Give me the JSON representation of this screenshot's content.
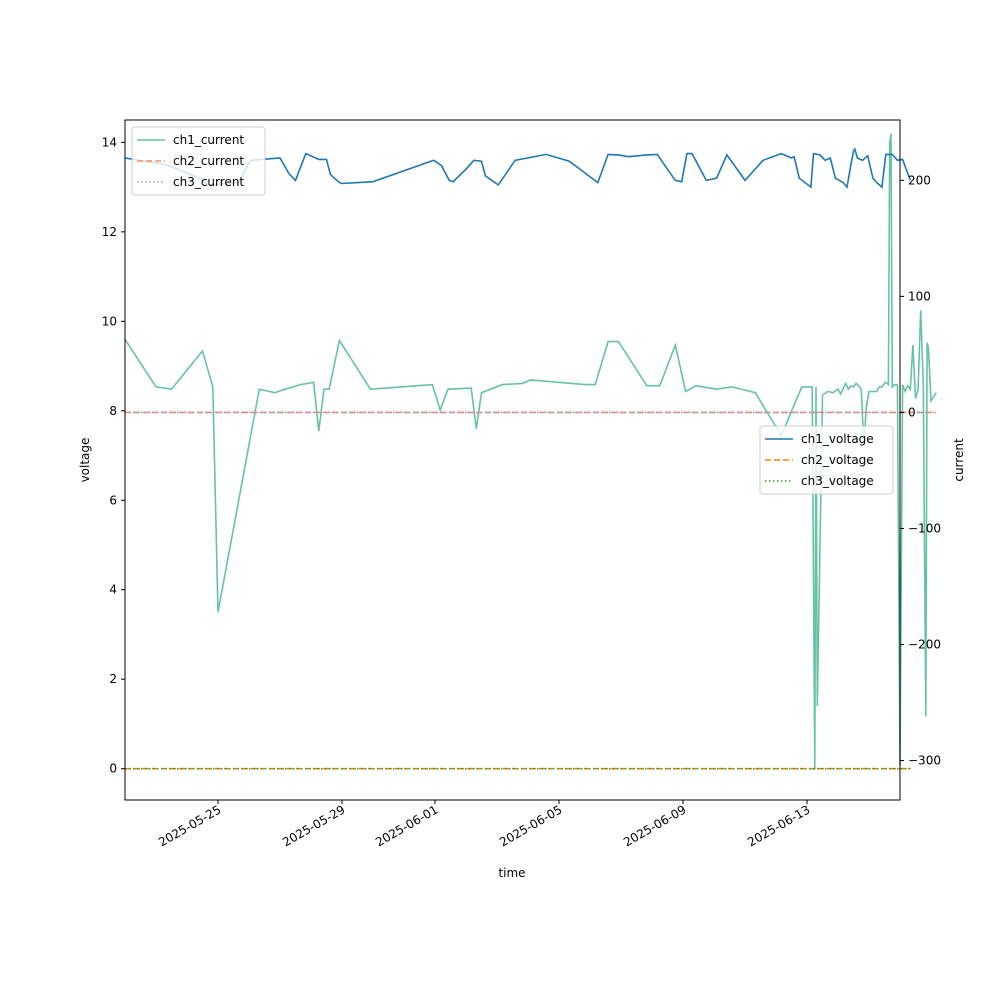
{
  "chart_data": {
    "type": "line",
    "xlabel": "time",
    "ylabel_left": "voltage",
    "ylabel_right": "current",
    "x_range": [
      "2025-05-22T00:00:00",
      "2025-06-16T00:00:00"
    ],
    "y_left_range": [
      -0.7,
      14.5
    ],
    "y_right_range": [
      -334,
      252
    ],
    "x_ticks": [
      "2025-05-25",
      "2025-05-29",
      "2025-06-01",
      "2025-06-05",
      "2025-06-09",
      "2025-06-13"
    ],
    "y_left_ticks": [
      0,
      2,
      4,
      6,
      8,
      10,
      12,
      14
    ],
    "y_right_ticks": [
      -300,
      -200,
      -100,
      0,
      100,
      200
    ],
    "legend_left": {
      "placement": "upper-left",
      "entries": [
        "ch1_current",
        "ch2_current",
        "ch3_current"
      ]
    },
    "legend_right": {
      "placement": "center-right",
      "entries": [
        "ch1_voltage",
        "ch2_voltage",
        "ch3_voltage"
      ]
    },
    "voltage_series": [
      {
        "name": "ch1_voltage",
        "color": "#1f77b4",
        "style": "solid",
        "points": [
          [
            "2025-05-22T00:00",
            13.65
          ],
          [
            "2025-05-23T08:00",
            13.5
          ],
          [
            "2025-05-24T10:00",
            13.2
          ],
          [
            "2025-05-24T16:00",
            13.05
          ],
          [
            "2025-05-25T16:00",
            13.1
          ],
          [
            "2025-05-26T01:00",
            13.6
          ],
          [
            "2025-05-27T00:00",
            13.65
          ],
          [
            "2025-05-27T07:00",
            13.3
          ],
          [
            "2025-05-27T12:00",
            13.15
          ],
          [
            "2025-05-27T20:00",
            13.75
          ],
          [
            "2025-05-28T06:00",
            13.62
          ],
          [
            "2025-05-28T12:00",
            13.62
          ],
          [
            "2025-05-28T15:00",
            13.28
          ],
          [
            "2025-05-28T22:00",
            13.1
          ],
          [
            "2025-05-29T00:00",
            13.08
          ],
          [
            "2025-05-30T00:00",
            13.12
          ],
          [
            "2025-05-31T23:00",
            13.6
          ],
          [
            "2025-06-01T05:00",
            13.48
          ],
          [
            "2025-06-01T11:00",
            13.15
          ],
          [
            "2025-06-01T14:00",
            13.12
          ],
          [
            "2025-06-02T00:00",
            13.4
          ],
          [
            "2025-06-02T06:00",
            13.6
          ],
          [
            "2025-06-02T12:00",
            13.58
          ],
          [
            "2025-06-02T15:00",
            13.25
          ],
          [
            "2025-06-03T01:00",
            13.05
          ],
          [
            "2025-06-03T14:00",
            13.6
          ],
          [
            "2025-06-04T14:00",
            13.73
          ],
          [
            "2025-06-05T08:00",
            13.58
          ],
          [
            "2025-06-06T06:00",
            13.1
          ],
          [
            "2025-06-06T14:00",
            13.73
          ],
          [
            "2025-06-06T22:00",
            13.72
          ],
          [
            "2025-06-07T06:00",
            13.68
          ],
          [
            "2025-06-07T20:00",
            13.72
          ],
          [
            "2025-06-08T04:00",
            13.73
          ],
          [
            "2025-06-08T18:00",
            13.15
          ],
          [
            "2025-06-08T23:00",
            13.12
          ],
          [
            "2025-06-09T03:00",
            13.75
          ],
          [
            "2025-06-09T07:00",
            13.75
          ],
          [
            "2025-06-09T18:00",
            13.15
          ],
          [
            "2025-06-10T02:00",
            13.2
          ],
          [
            "2025-06-10T10:00",
            13.72
          ],
          [
            "2025-06-11T00:00",
            13.15
          ],
          [
            "2025-06-11T14:00",
            13.6
          ],
          [
            "2025-06-12T04:00",
            13.75
          ],
          [
            "2025-06-12T12:00",
            13.65
          ],
          [
            "2025-06-12T14:00",
            13.68
          ],
          [
            "2025-06-12T18:00",
            13.2
          ],
          [
            "2025-06-13T03:00",
            13.0
          ],
          [
            "2025-06-13T05:00",
            13.75
          ],
          [
            "2025-06-13T10:00",
            13.72
          ],
          [
            "2025-06-13T14:00",
            13.6
          ],
          [
            "2025-06-13T18:00",
            13.65
          ],
          [
            "2025-06-13T22:00",
            13.2
          ],
          [
            "2025-06-14T04:00",
            13.1
          ],
          [
            "2025-06-14T07:00",
            13.0
          ],
          [
            "2025-06-14T10:00",
            13.5
          ],
          [
            "2025-06-14T12:00",
            13.8
          ],
          [
            "2025-06-14T13:00",
            13.85
          ],
          [
            "2025-06-14T15:00",
            13.65
          ],
          [
            "2025-06-14T19:00",
            13.6
          ],
          [
            "2025-06-14T23:00",
            13.7
          ],
          [
            "2025-06-15T03:00",
            13.2
          ],
          [
            "2025-06-15T06:00",
            13.1
          ],
          [
            "2025-06-15T10:00",
            13.0
          ],
          [
            "2025-06-15T13:00",
            13.73
          ],
          [
            "2025-06-15T18:00",
            13.73
          ],
          [
            "2025-06-15T22:00",
            13.6
          ],
          [
            "2025-06-16T02:00",
            13.62
          ],
          [
            "2025-06-16T08:00",
            13.15
          ]
        ]
      },
      {
        "name": "ch2_voltage",
        "color": "#ff7f0e",
        "style": "dashed",
        "points": [
          [
            "2025-05-22T00:00",
            0
          ],
          [
            "2025-06-16T08:00",
            0
          ]
        ]
      },
      {
        "name": "ch3_voltage",
        "color": "#2ca02c",
        "style": "dotted",
        "points": [
          [
            "2025-05-22T00:00",
            0
          ],
          [
            "2025-06-16T08:00",
            0
          ]
        ]
      }
    ],
    "current_series": [
      {
        "name": "ch1_current",
        "color": "#66c2a5",
        "style": "solid",
        "points": [
          [
            "2025-05-22T00:00",
            63
          ],
          [
            "2025-05-23T00:00",
            22
          ],
          [
            "2025-05-23T12:00",
            20
          ],
          [
            "2025-05-24T12:00",
            53
          ],
          [
            "2025-05-24T20:00",
            22
          ],
          [
            "2025-05-25T00:00",
            -172
          ],
          [
            "2025-05-26T08:00",
            20
          ],
          [
            "2025-05-26T20:00",
            17
          ],
          [
            "2025-05-27T04:00",
            20
          ],
          [
            "2025-05-27T16:00",
            24
          ],
          [
            "2025-05-28T02:00",
            26
          ],
          [
            "2025-05-28T06:00",
            -16
          ],
          [
            "2025-05-28T10:00",
            20
          ],
          [
            "2025-05-28T14:00",
            20
          ],
          [
            "2025-05-28T22:00",
            62
          ],
          [
            "2025-05-29T22:00",
            20
          ],
          [
            "2025-05-31T22:00",
            24
          ],
          [
            "2025-06-01T04:00",
            2
          ],
          [
            "2025-06-01T10:00",
            20
          ],
          [
            "2025-06-02T04:00",
            21
          ],
          [
            "2025-06-02T08:00",
            -14
          ],
          [
            "2025-06-02T12:00",
            17
          ],
          [
            "2025-06-03T04:00",
            24
          ],
          [
            "2025-06-03T20:00",
            25
          ],
          [
            "2025-06-04T02:00",
            28
          ],
          [
            "2025-06-05T20:00",
            24
          ],
          [
            "2025-06-06T04:00",
            24
          ],
          [
            "2025-06-06T14:00",
            61
          ],
          [
            "2025-06-06T22:00",
            61
          ],
          [
            "2025-06-07T20:00",
            23
          ],
          [
            "2025-06-08T06:00",
            23
          ],
          [
            "2025-06-08T18:00",
            58
          ],
          [
            "2025-06-09T02:00",
            18
          ],
          [
            "2025-06-09T10:00",
            23
          ],
          [
            "2025-06-10T02:00",
            20
          ],
          [
            "2025-06-10T14:00",
            22
          ],
          [
            "2025-06-11T08:00",
            17
          ],
          [
            "2025-06-12T04:00",
            -20
          ],
          [
            "2025-06-12T20:00",
            22
          ],
          [
            "2025-06-13T04:00",
            22
          ],
          [
            "2025-06-13T06:00",
            -308
          ],
          [
            "2025-06-13T07:00",
            22
          ],
          [
            "2025-06-13T08:00",
            -253
          ],
          [
            "2025-06-13T12:00",
            15
          ],
          [
            "2025-06-13T16:00",
            18
          ],
          [
            "2025-06-13T20:00",
            17
          ],
          [
            "2025-06-14T00:00",
            20
          ],
          [
            "2025-06-14T02:00",
            16
          ],
          [
            "2025-06-14T06:00",
            25
          ],
          [
            "2025-06-14T08:00",
            20
          ],
          [
            "2025-06-14T10:00",
            23
          ],
          [
            "2025-06-14T12:00",
            22
          ],
          [
            "2025-06-14T14:00",
            25
          ],
          [
            "2025-06-14T16:00",
            23
          ],
          [
            "2025-06-14T18:00",
            20
          ],
          [
            "2025-06-14T20:00",
            -28
          ],
          [
            "2025-06-14T22:00",
            5
          ],
          [
            "2025-06-15T00:00",
            18
          ],
          [
            "2025-06-15T02:00",
            18
          ],
          [
            "2025-06-15T04:00",
            18
          ],
          [
            "2025-06-15T06:00",
            18
          ],
          [
            "2025-06-15T08:00",
            22
          ],
          [
            "2025-06-15T10:00",
            22
          ],
          [
            "2025-06-15T12:00",
            25
          ],
          [
            "2025-06-15T13:00",
            26
          ],
          [
            "2025-06-15T15:00",
            24
          ],
          [
            "2025-06-15T16:00",
            232
          ],
          [
            "2025-06-15T17:00",
            240
          ],
          [
            "2025-06-15T18:00",
            22
          ],
          [
            "2025-06-15T20:00",
            24
          ],
          [
            "2025-06-15T22:00",
            24
          ],
          [
            "2025-06-16T00:00",
            -304
          ],
          [
            "2025-06-16T02:00",
            24
          ],
          [
            "2025-06-16T04:00",
            18
          ],
          [
            "2025-06-16T06:00",
            23
          ],
          [
            "2025-06-16T08:00",
            20
          ],
          [
            "2025-06-16T10:00",
            58
          ],
          [
            "2025-06-16T12:00",
            12
          ],
          [
            "2025-06-16T14:00",
            20
          ],
          [
            "2025-06-16T16:00",
            88
          ],
          [
            "2025-06-16T18:00",
            24
          ],
          [
            "2025-06-16T20:00",
            -262
          ],
          [
            "2025-06-16T21:00",
            60
          ],
          [
            "2025-06-16T22:00",
            56
          ],
          [
            "2025-06-17T00:00",
            10
          ],
          [
            "2025-06-17T04:00",
            17
          ]
        ]
      },
      {
        "name": "ch2_current",
        "color": "#fc8d62",
        "style": "dashed",
        "points": [
          [
            "2025-05-22T00:00",
            0
          ],
          [
            "2025-06-17T04:00",
            0
          ]
        ]
      },
      {
        "name": "ch3_current",
        "color": "#8da0cb",
        "style": "dotted",
        "points": [
          [
            "2025-05-22T00:00",
            0
          ],
          [
            "2025-06-17T04:00",
            0
          ]
        ]
      }
    ]
  }
}
